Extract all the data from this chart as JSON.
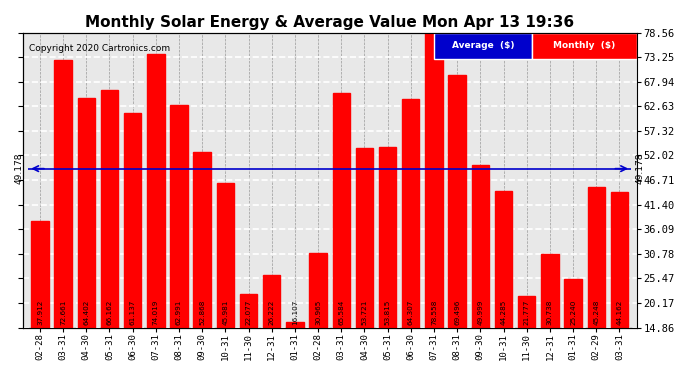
{
  "title": "Monthly Solar Energy & Average Value Mon Apr 13 19:36",
  "copyright": "Copyright 2020 Cartronics.com",
  "categories": [
    "02-28",
    "03-31",
    "04-30",
    "05-31",
    "06-30",
    "07-31",
    "08-31",
    "09-30",
    "10-31",
    "11-30",
    "12-31",
    "01-31",
    "02-28",
    "03-31",
    "04-30",
    "05-31",
    "06-30",
    "07-31",
    "08-31",
    "09-30",
    "10-31",
    "11-30",
    "12-31",
    "01-31",
    "02-29",
    "03-31"
  ],
  "values": [
    37.912,
    72.661,
    64.402,
    66.162,
    61.137,
    74.019,
    62.991,
    52.868,
    45.981,
    22.077,
    26.222,
    16.107,
    30.965,
    65.584,
    53.721,
    53.815,
    64.307,
    78.558,
    69.496,
    49.999,
    44.285,
    21.777,
    30.738,
    25.24,
    45.248,
    44.162
  ],
  "average": 49.178,
  "bar_color": "#ff0000",
  "avg_line_color": "#0000cc",
  "background_color": "#ffffff",
  "plot_bg_color": "#e8e8e8",
  "title_fontsize": 11,
  "ylabel_right_values": [
    14.86,
    20.17,
    25.47,
    30.78,
    36.09,
    41.4,
    46.71,
    52.02,
    57.32,
    62.63,
    67.94,
    73.25,
    78.56
  ],
  "ylim_min": 14.86,
  "ylim_max": 78.56,
  "legend_avg_color": "#0000cc",
  "legend_monthly_color": "#ff0000"
}
